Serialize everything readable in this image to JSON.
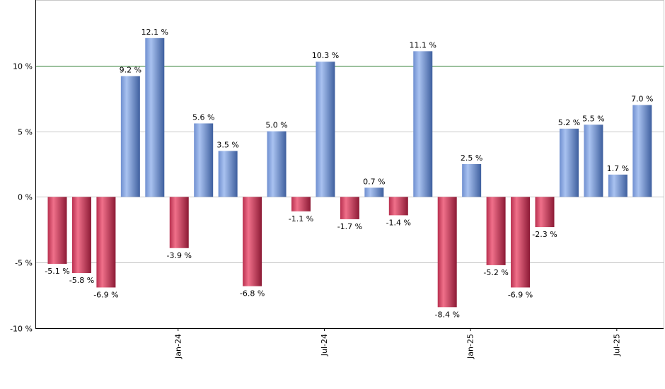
{
  "chart_data": {
    "type": "bar",
    "title": "",
    "xlabel": "",
    "ylabel": "",
    "ylim": [
      -10,
      15
    ],
    "y_ticks": [
      -10,
      -5,
      0,
      5,
      10
    ],
    "y_tick_suffix": " %",
    "reference_line": 10,
    "grid": true,
    "values": [
      -5.1,
      -5.8,
      -6.9,
      9.2,
      12.1,
      -3.9,
      5.6,
      3.5,
      -6.8,
      5.0,
      -1.1,
      10.3,
      -1.7,
      0.7,
      -1.4,
      11.1,
      -8.4,
      2.5,
      -5.2,
      -6.9,
      -2.3,
      5.2,
      5.5,
      1.7,
      7.0
    ],
    "labels": [
      "-5.1 %",
      "-5.8 %",
      "-6.9 %",
      "9.2 %",
      "12.1 %",
      "-3.9 %",
      "5.6 %",
      "3.5 %",
      "-6.8 %",
      "5.0 %",
      "-1.1 %",
      "10.3 %",
      "-1.7 %",
      "0.7 %",
      "-1.4 %",
      "11.1 %",
      "-8.4 %",
      "2.5 %",
      "-5.2 %",
      "-6.9 %",
      "-2.3 %",
      "5.2 %",
      "5.5 %",
      "1.7 %",
      "7.0 %"
    ],
    "x_ticks": [
      {
        "label": "Jan-24",
        "bar_index": 5
      },
      {
        "label": "Jul-24",
        "bar_index": 11
      },
      {
        "label": "Jan-25",
        "bar_index": 17
      },
      {
        "label": "Jul-25",
        "bar_index": 23
      }
    ],
    "colors": {
      "positive": "#7b9cd9",
      "negative": "#c8395a",
      "reference_line": "#2e7d32",
      "grid": "#c8c8c8",
      "axis": "#000000"
    }
  }
}
